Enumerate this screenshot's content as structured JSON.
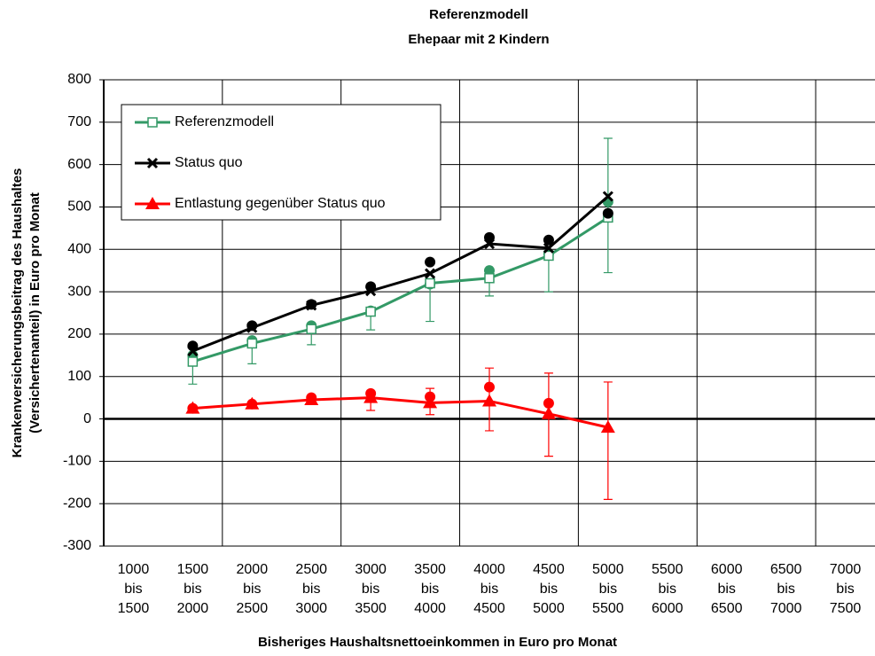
{
  "chart_data": {
    "type": "line",
    "title": [
      "Referenzmodell",
      "Ehepaar mit 2 Kindern"
    ],
    "y_label": [
      "Krankenversicherungsbeitrag des Haushaltes",
      "(Versichertenanteil) in Euro pro Monat"
    ],
    "x_label": "Bisheriges Haushaltsnettoeinkommen in Euro pro Monat",
    "categories": [
      "1000 bis 1500",
      "1500 bis 2000",
      "2000 bis 2500",
      "2500 bis 3000",
      "3000 bis 3500",
      "3500 bis 4000",
      "4000 bis 4500",
      "4500 bis 5000",
      "5000 bis 5500",
      "5500 bis 6000",
      "6000 bis 6500",
      "6500 bis 7000",
      "7000 bis 7500"
    ],
    "ylim": [
      -300,
      800
    ],
    "yticks": [
      -300,
      -200,
      -100,
      0,
      100,
      200,
      300,
      400,
      500,
      600,
      700,
      800
    ],
    "grid": true,
    "legend": "upper left",
    "series": [
      {
        "name": "Referenzmodell",
        "color": "#339966",
        "marker": "square-open",
        "values": [
          null,
          135,
          178,
          212,
          253,
          320,
          332,
          385,
          475,
          null,
          null,
          null,
          null
        ],
        "points": [
          null,
          150,
          185,
          220,
          255,
          318,
          350,
          390,
          512,
          null,
          null,
          null,
          null
        ],
        "error_low": [
          null,
          82,
          130,
          175,
          210,
          230,
          290,
          300,
          345,
          null,
          null,
          null,
          null
        ],
        "error_high": [
          null,
          150,
          185,
          220,
          255,
          318,
          350,
          390,
          662,
          null,
          null,
          null,
          null
        ]
      },
      {
        "name": "Status quo",
        "color": "#000000",
        "marker": "x",
        "values": [
          null,
          160,
          215,
          268,
          302,
          343,
          413,
          403,
          525,
          null,
          null,
          null,
          null
        ],
        "points": [
          null,
          172,
          220,
          270,
          312,
          370,
          428,
          422,
          485,
          null,
          null,
          null,
          null
        ]
      },
      {
        "name": "Entlastung gegenüber Status quo",
        "color": "#ff0000",
        "marker": "triangle",
        "values": [
          null,
          25,
          35,
          45,
          50,
          38,
          42,
          12,
          -20,
          null,
          null,
          null,
          null
        ],
        "points": [
          null,
          25,
          35,
          50,
          60,
          52,
          75,
          37,
          null,
          null,
          null,
          null,
          null
        ],
        "error_low": [
          null,
          null,
          null,
          null,
          20,
          10,
          -28,
          -88,
          -190,
          null,
          null,
          null,
          null
        ],
        "error_high": [
          null,
          null,
          null,
          null,
          60,
          72,
          120,
          108,
          87,
          null,
          null,
          null,
          null
        ]
      }
    ]
  }
}
